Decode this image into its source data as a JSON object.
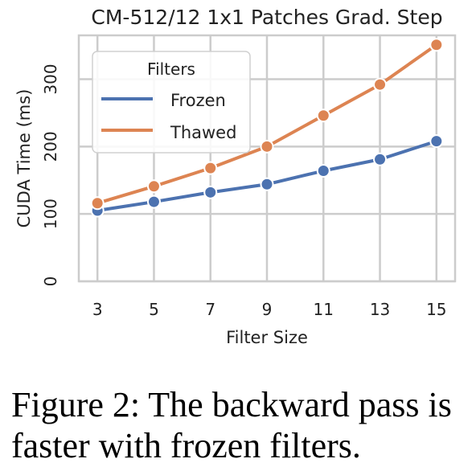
{
  "chart_data": {
    "type": "line",
    "title": "CM-512/12 1x1 Patches Grad. Step",
    "xlabel": "Filter Size",
    "ylabel": "CUDA Time (ms)",
    "x": [
      3,
      5,
      7,
      9,
      11,
      13,
      15
    ],
    "yticks": [
      0,
      100,
      200,
      300
    ],
    "ylim": [
      0,
      365
    ],
    "grid": true,
    "legend": {
      "title": "Filters",
      "position": "top-left"
    },
    "series": [
      {
        "name": "Frozen",
        "color": "#4c72b0",
        "values": [
          105,
          118,
          132,
          144,
          164,
          181,
          208
        ]
      },
      {
        "name": "Thawed",
        "color": "#dd8452",
        "values": [
          116,
          141,
          168,
          200,
          246,
          292,
          351
        ]
      }
    ]
  },
  "caption": "Figure 2: The backward pass is faster with frozen filters."
}
